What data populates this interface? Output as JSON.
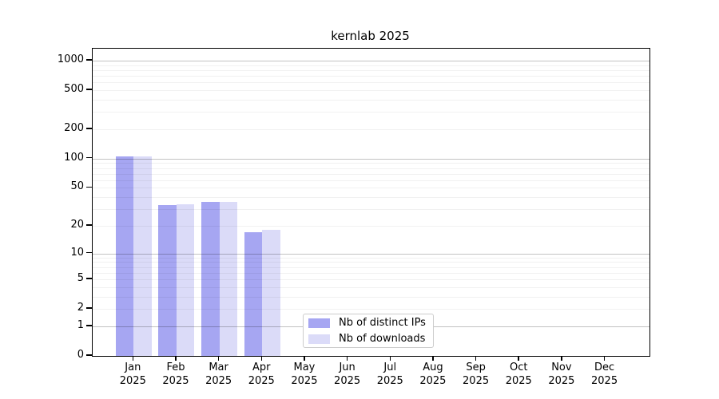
{
  "chart_data": {
    "type": "bar",
    "title": "kernlab 2025",
    "categories": [
      "Jan",
      "Feb",
      "Mar",
      "Apr",
      "May",
      "Jun",
      "Jul",
      "Aug",
      "Sep",
      "Oct",
      "Nov",
      "Dec"
    ],
    "x_year": "2025",
    "series": [
      {
        "name": "Nb of distinct IPs",
        "color": "#a6a6f2",
        "values": [
          105,
          33,
          36,
          17,
          0,
          0,
          0,
          0,
          0,
          0,
          0,
          0
        ]
      },
      {
        "name": "Nb of downloads",
        "color": "#dbdbf8",
        "values": [
          106,
          34,
          36,
          18,
          0,
          0,
          0,
          0,
          0,
          0,
          0,
          0
        ]
      }
    ],
    "y_ticks": [
      0,
      1,
      2,
      5,
      10,
      20,
      50,
      100,
      200,
      500,
      1000
    ],
    "y_major_gridlines": [
      1,
      10,
      100,
      1000
    ],
    "y_minor_gridlines": [
      2,
      3,
      4,
      5,
      6,
      7,
      8,
      9,
      20,
      30,
      40,
      50,
      60,
      70,
      80,
      90,
      200,
      300,
      400,
      500,
      600,
      700,
      800,
      900
    ],
    "scale": "log1p",
    "ylim": [
      0,
      1320
    ],
    "grid": true,
    "legend_position": "lower center"
  },
  "colors": {
    "bar_distinct_ips": "#a6a6f2",
    "bar_downloads": "#dbdbf8",
    "axis": "#000000",
    "legend_border": "#cccccc"
  }
}
